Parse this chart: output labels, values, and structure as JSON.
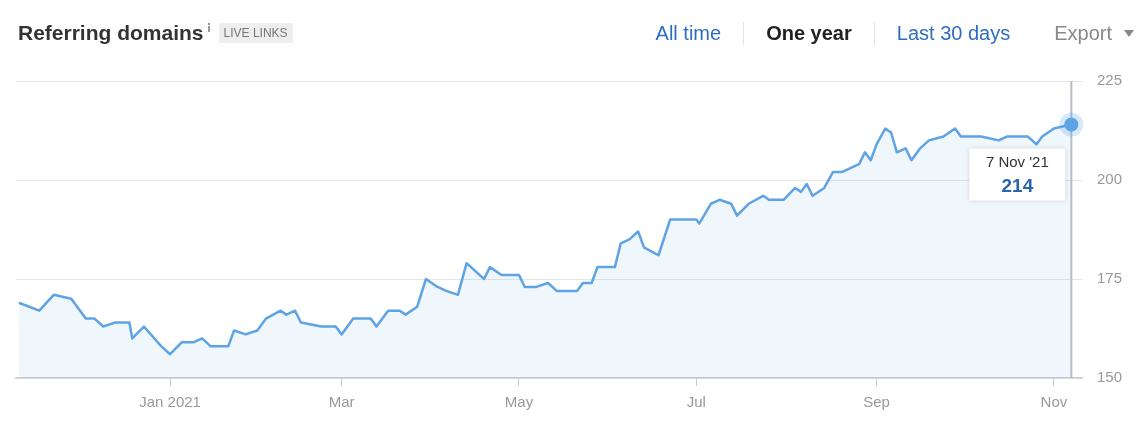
{
  "chart_data": {
    "type": "area",
    "title": "Referring domains",
    "annotations": [
      "LIVE LINKS",
      "All time",
      "One year",
      "Last 30 days",
      "Export",
      {
        "text": "7 Nov '21",
        "x": "2021-11-07",
        "y": 214
      },
      "214"
    ],
    "x": [
      "2020-11-10",
      "2020-11-17",
      "2020-11-22",
      "2020-11-28",
      "2020-12-03",
      "2020-12-06",
      "2020-12-09",
      "2020-12-13",
      "2020-12-18",
      "2020-12-19",
      "2020-12-23",
      "2020-12-29",
      "2021-01-01",
      "2021-01-05",
      "2021-01-09",
      "2021-01-12",
      "2021-01-15",
      "2021-01-21",
      "2021-01-23",
      "2021-01-27",
      "2021-01-31",
      "2021-02-03",
      "2021-02-08",
      "2021-02-10",
      "2021-02-13",
      "2021-02-15",
      "2021-02-22",
      "2021-02-27",
      "2021-03-01",
      "2021-03-05",
      "2021-03-11",
      "2021-03-13",
      "2021-03-17",
      "2021-03-21",
      "2021-03-23",
      "2021-03-27",
      "2021-03-30",
      "2021-04-03",
      "2021-04-06",
      "2021-04-10",
      "2021-04-13",
      "2021-04-16",
      "2021-04-19",
      "2021-04-21",
      "2021-04-25",
      "2021-05-01",
      "2021-05-03",
      "2021-05-07",
      "2021-05-11",
      "2021-05-14",
      "2021-05-21",
      "2021-05-23",
      "2021-05-26",
      "2021-05-28",
      "2021-06-03",
      "2021-06-05",
      "2021-06-08",
      "2021-06-11",
      "2021-06-13",
      "2021-06-18",
      "2021-06-22",
      "2021-07-01",
      "2021-07-02",
      "2021-07-06",
      "2021-07-09",
      "2021-07-13",
      "2021-07-15",
      "2021-07-19",
      "2021-07-24",
      "2021-07-26",
      "2021-07-31",
      "2021-08-04",
      "2021-08-06",
      "2021-08-08",
      "2021-08-10",
      "2021-08-14",
      "2021-08-17",
      "2021-08-20",
      "2021-08-26",
      "2021-08-28",
      "2021-08-30",
      "2021-09-01",
      "2021-09-04",
      "2021-09-06",
      "2021-09-08",
      "2021-09-11",
      "2021-09-13",
      "2021-09-16",
      "2021-09-19",
      "2021-09-24",
      "2021-09-28",
      "2021-09-30",
      "2021-10-07",
      "2021-10-13",
      "2021-10-16",
      "2021-10-23",
      "2021-10-26",
      "2021-10-28",
      "2021-11-01",
      "2021-11-07"
    ],
    "series": [
      {
        "color": "#5ea3e3",
        "values": [
          169,
          167,
          171,
          170,
          165,
          165,
          163,
          164,
          164,
          160,
          163,
          158,
          156,
          159,
          159,
          160,
          158,
          158,
          162,
          161,
          162,
          165,
          167,
          166,
          167,
          164,
          163,
          163,
          161,
          165,
          165,
          163,
          167,
          167,
          166,
          168,
          175,
          173,
          172,
          171,
          179,
          177,
          175,
          178,
          176,
          176,
          173,
          173,
          174,
          172,
          172,
          174,
          174,
          178,
          178,
          184,
          185,
          187,
          183,
          181,
          190,
          190,
          189,
          194,
          195,
          194,
          191,
          194,
          196,
          195,
          195,
          198,
          197,
          199,
          196,
          198,
          202,
          202,
          204,
          207,
          205,
          209,
          213,
          212,
          207,
          208,
          205,
          208,
          210,
          211,
          213,
          211,
          211,
          210,
          211,
          211,
          209,
          211,
          213,
          214
        ]
      }
    ],
    "xlim": [
      "2020-11-09",
      "2021-11-11"
    ],
    "xticks": [
      {
        "value": "2021-01-01",
        "label": "Jan 2021"
      },
      {
        "value": "2021-03-01",
        "label": "Mar"
      },
      {
        "value": "2021-05-01",
        "label": "May"
      },
      {
        "value": "2021-07-01",
        "label": "Jul"
      },
      {
        "value": "2021-09-01",
        "label": "Sep"
      },
      {
        "value": "2021-11-01",
        "label": "Nov"
      }
    ],
    "ylim": [
      150,
      225
    ],
    "yticks": [
      150,
      175,
      200,
      225
    ],
    "grid": "y",
    "legend": false,
    "marker": "none",
    "line_style": "solid"
  }
}
